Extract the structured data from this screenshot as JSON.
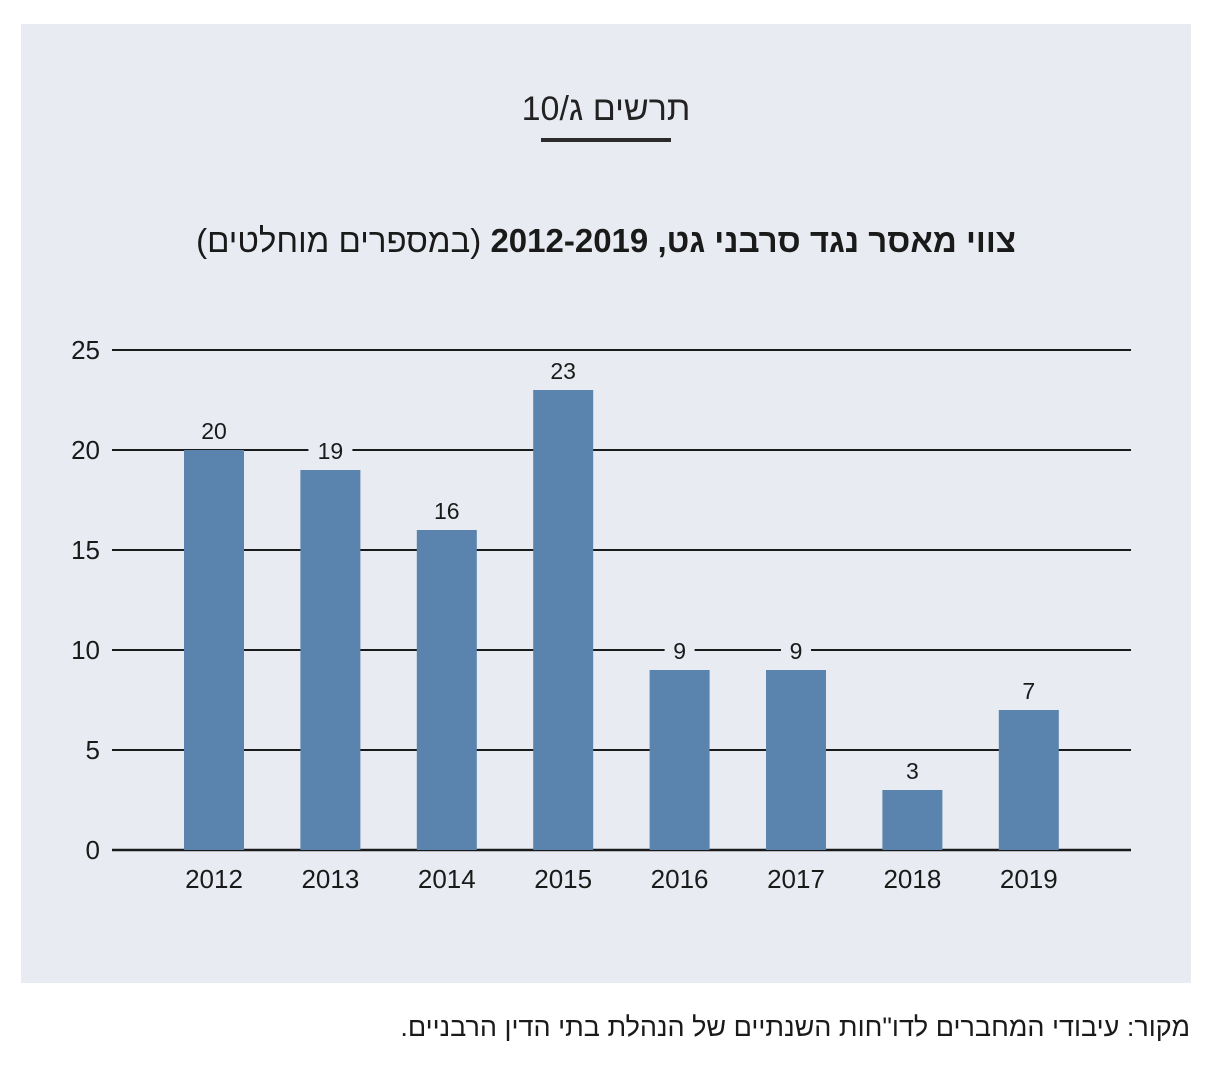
{
  "figure_label": "תרשים ג/10",
  "colors": {
    "panel_background": "#e8ecf2",
    "bar": "#5a84ad",
    "gridline": "#1a1a1a",
    "text": "#1a1a1a"
  },
  "chart_data": {
    "type": "bar",
    "title_bold": "צווי מאסר נגד סרבני גט, 2012-2019",
    "title_normal": " (במספרים מוחלטים)",
    "xlabel": "",
    "ylabel": "",
    "categories": [
      "2012",
      "2013",
      "2014",
      "2015",
      "2016",
      "2017",
      "2018",
      "2019"
    ],
    "values": [
      20,
      19,
      16,
      23,
      9,
      9,
      3,
      7
    ],
    "ylim": [
      0,
      25
    ],
    "yticks": [
      0,
      5,
      10,
      15,
      20,
      25
    ],
    "grid": true,
    "data_labels": true,
    "legend": "none"
  },
  "source_note": "מקור: עיבודי המחברים לדו\"חות השנתיים של הנהלת בתי הדין הרבניים."
}
